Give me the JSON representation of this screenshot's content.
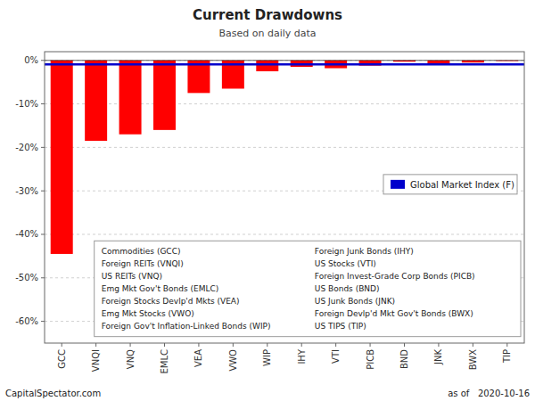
{
  "chart_data": {
    "type": "bar",
    "title": "Current Drawdowns",
    "subtitle": "Based on daily data",
    "categories": [
      "GCC",
      "VNQI",
      "VNQ",
      "EMLC",
      "VEA",
      "VWO",
      "WIP",
      "IHY",
      "VTI",
      "PICB",
      "BND",
      "JNK",
      "BWX",
      "TIP"
    ],
    "values": [
      -44.5,
      -18.5,
      -17.0,
      -16.0,
      -7.5,
      -6.5,
      -2.5,
      -1.5,
      -1.8,
      -1.2,
      -0.3,
      -0.8,
      -0.5,
      -0.15
    ],
    "color": "#FF0000",
    "ylim": [
      -65,
      2
    ],
    "yticks": [
      {
        "value": 0,
        "label": "0%"
      },
      {
        "value": -10,
        "label": "-10%"
      },
      {
        "value": -20,
        "label": "-20%"
      },
      {
        "value": -30,
        "label": "-30%"
      },
      {
        "value": -40,
        "label": "-40%"
      },
      {
        "value": -50,
        "label": "-50%"
      },
      {
        "value": -60,
        "label": "-60%"
      }
    ],
    "grid": true,
    "legend": "right",
    "reference_lines": [
      {
        "label": "Global Market Index (F)",
        "value": -0.9,
        "color": "#0000CC"
      }
    ],
    "annotations": [
      "Commodities (GCC)",
      "Foreign REITs (VNQI)",
      "US REITs (VNQ)",
      "Emg Mkt Gov't Bonds (EMLC)",
      "Foreign Stocks Devlp'd Mkts (VEA)",
      "Emg Mkt Stocks (VWO)",
      "Foreign Gov't Inflation-Linked Bonds (WIP)",
      "Foreign Junk Bonds (IHY)",
      "US Stocks (VTI)",
      "Foreign Invest-Grade Corp Bonds (PICB)",
      "US Bonds (BND)",
      "US Junk Bonds (JNK)",
      "Foreign Devlp'd Mkt Gov't Bonds (BWX)",
      "US TIPS (TIP)"
    ],
    "footer_left": "CapitalSpectator.com",
    "footer_right": "as of   2020-10-16"
  }
}
